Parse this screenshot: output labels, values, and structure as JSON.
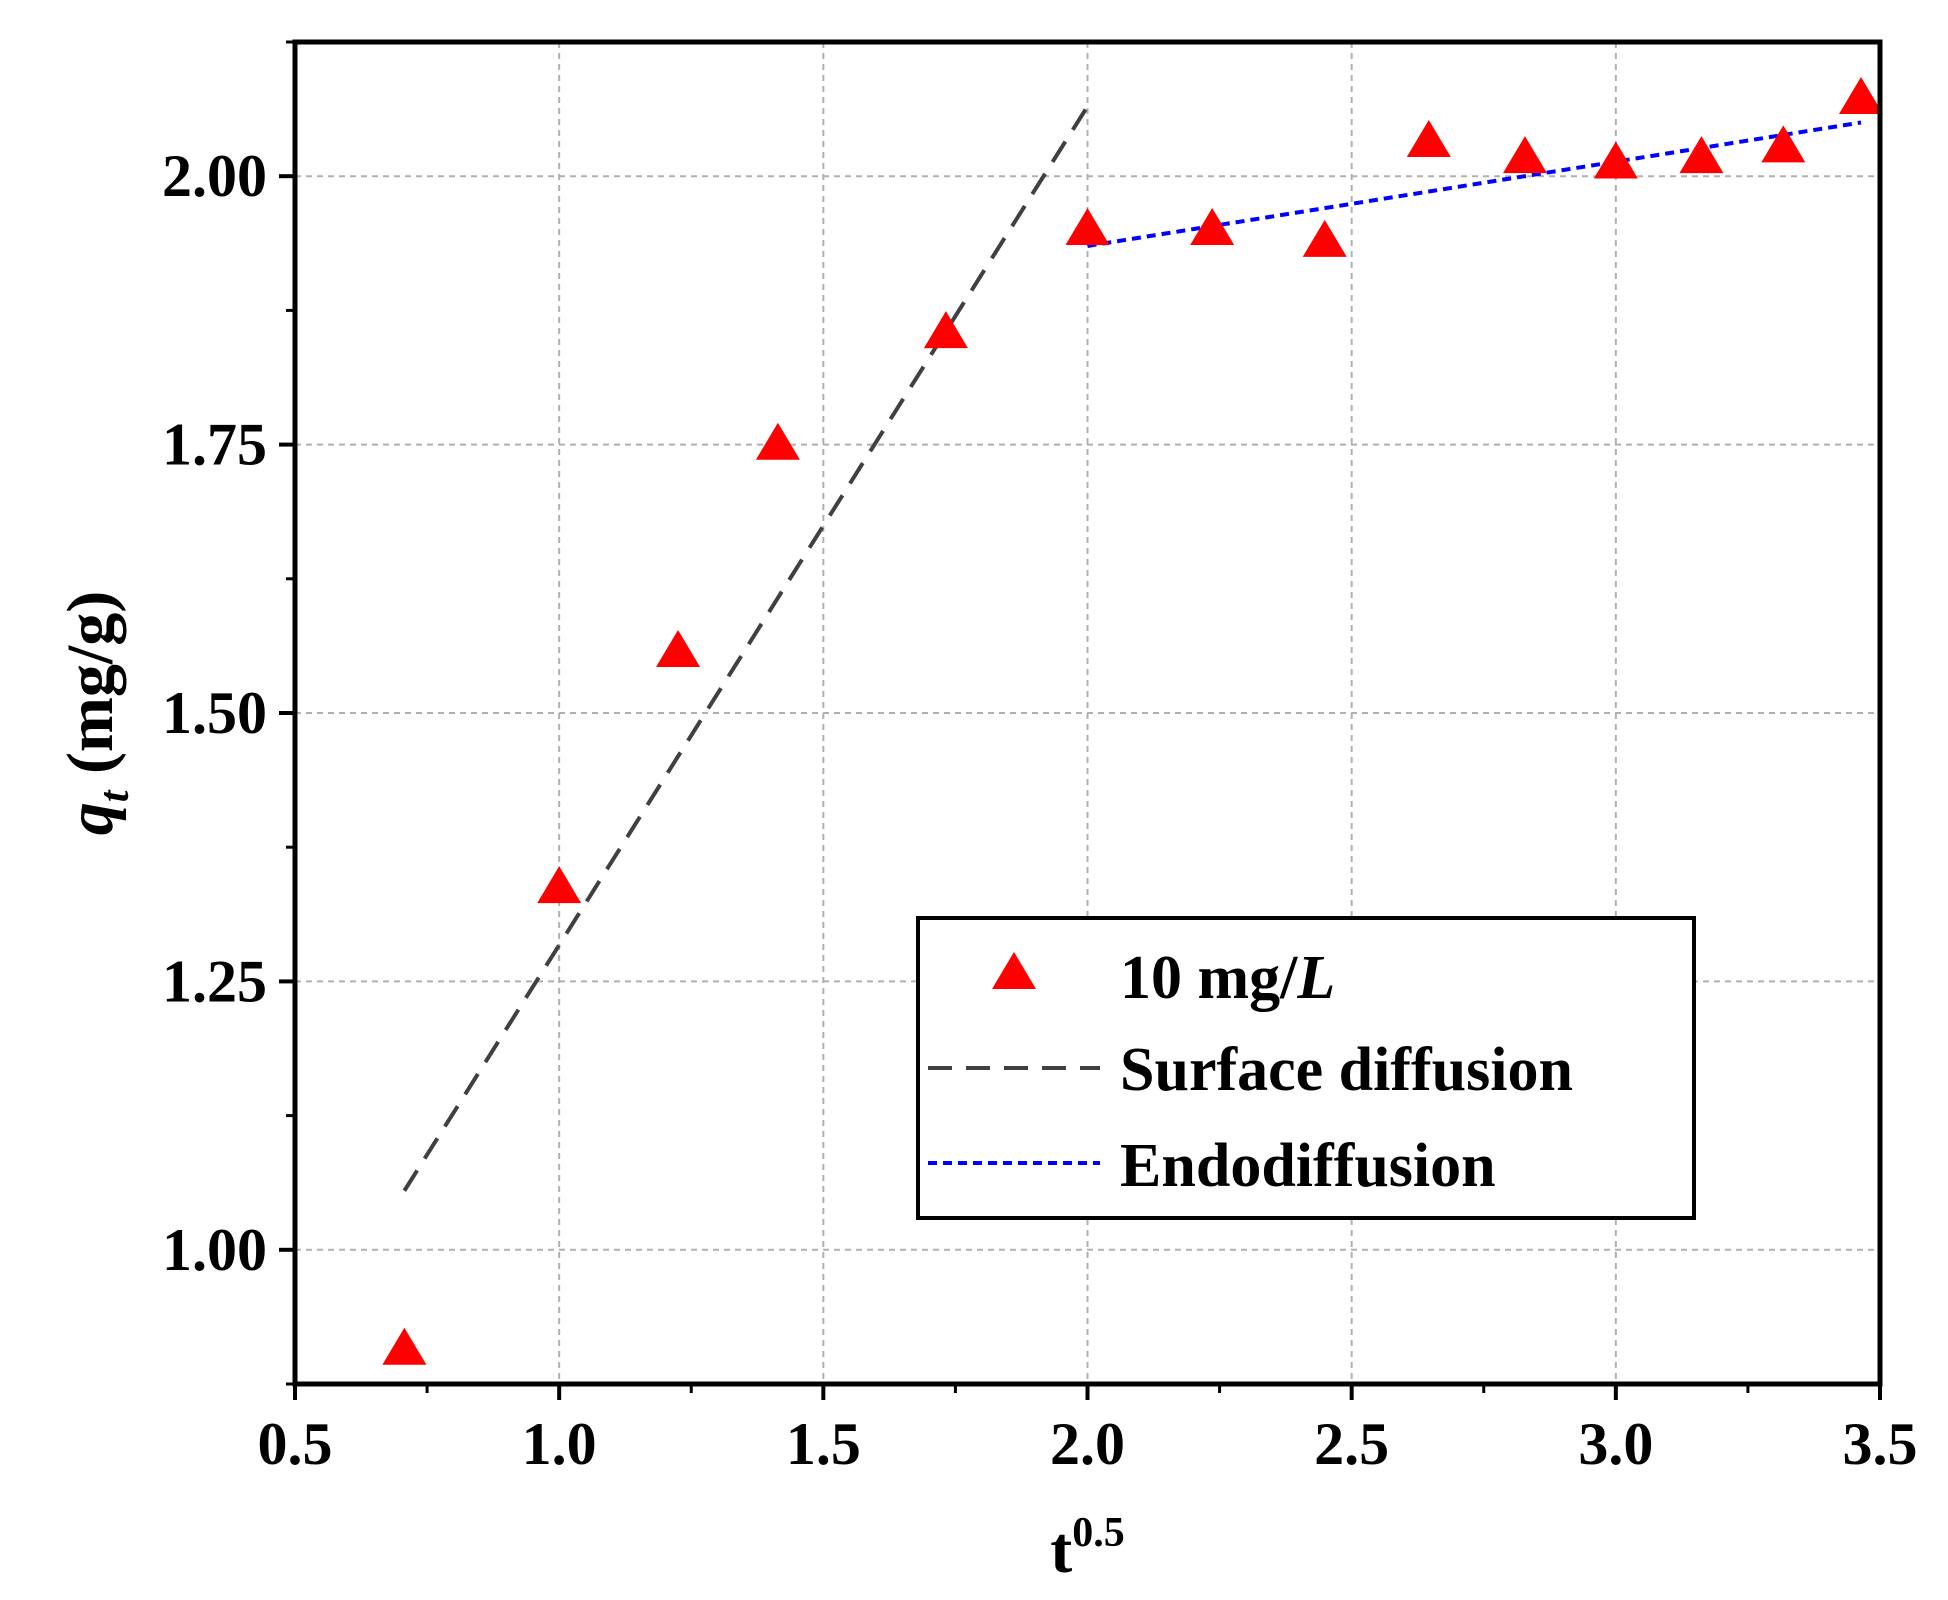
{
  "chart_data": {
    "type": "scatter",
    "xlabel": {
      "base": "t",
      "sup": "0.5"
    },
    "ylabel": {
      "q": "q",
      "sub": "t",
      "unit": " (mg/g)"
    },
    "xlim": [
      0.5,
      3.5
    ],
    "ylim": [
      0.875,
      2.125
    ],
    "xticks": [
      "0.5",
      "1.0",
      "1.5",
      "2.0",
      "2.5",
      "3.0",
      "3.5"
    ],
    "yticks": [
      "1.00",
      "1.25",
      "1.50",
      "1.75",
      "2.00"
    ],
    "grid": true,
    "legend_position": "bottom-right",
    "series": [
      {
        "name": "10 mg/L",
        "name_parts": [
          "10 mg/",
          "L"
        ],
        "kind": "marker",
        "marker": "triangle",
        "color": "#ff0000",
        "x": [
          0.707,
          1.0,
          1.225,
          1.414,
          1.732,
          2.0,
          2.236,
          2.449,
          2.646,
          2.828,
          3.0,
          3.162,
          3.317,
          3.464
        ],
        "y": [
          0.905,
          1.335,
          1.555,
          1.748,
          1.852,
          1.948,
          1.948,
          1.937,
          2.03,
          2.015,
          2.01,
          2.015,
          2.025,
          2.07
        ]
      },
      {
        "name": "Surface diffusion",
        "kind": "line",
        "style": "dashed",
        "color": "#404040",
        "x": [
          0.707,
          2.0
        ],
        "y": [
          1.055,
          2.065
        ]
      },
      {
        "name": "Endodiffusion",
        "kind": "line",
        "style": "dotted",
        "color": "#0000ff",
        "x": [
          2.0,
          3.464
        ],
        "y": [
          1.935,
          2.05
        ]
      }
    ]
  }
}
